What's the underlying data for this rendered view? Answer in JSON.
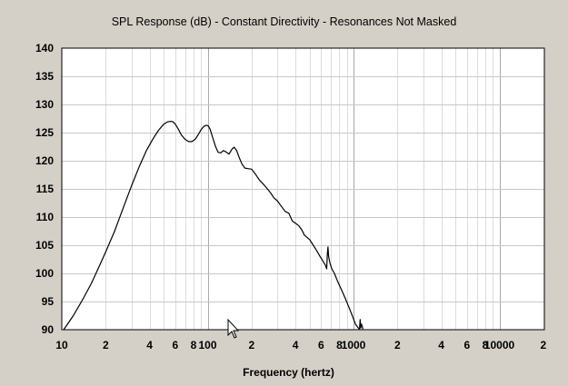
{
  "chart_data": {
    "type": "line",
    "title": "SPL Response (dB) - Constant Directivity - Resonances Not Masked",
    "xlabel": "Frequency (hertz)",
    "ylabel": "",
    "x_scale": "log",
    "xlim": [
      10,
      20000
    ],
    "ylim": [
      90,
      140
    ],
    "yticks": [
      90,
      95,
      100,
      105,
      110,
      115,
      120,
      125,
      130,
      135,
      140
    ],
    "xtick_labels": [
      {
        "value": 10,
        "label": "10"
      },
      {
        "value": 20,
        "label": "2"
      },
      {
        "value": 40,
        "label": "4"
      },
      {
        "value": 60,
        "label": "6"
      },
      {
        "value": 80,
        "label": "8"
      },
      {
        "value": 100,
        "label": "100"
      },
      {
        "value": 200,
        "label": "2"
      },
      {
        "value": 400,
        "label": "4"
      },
      {
        "value": 600,
        "label": "6"
      },
      {
        "value": 800,
        "label": "8"
      },
      {
        "value": 1000,
        "label": "1000"
      },
      {
        "value": 2000,
        "label": "2"
      },
      {
        "value": 4000,
        "label": "4"
      },
      {
        "value": 6000,
        "label": "6"
      },
      {
        "value": 8000,
        "label": "8"
      },
      {
        "value": 10000,
        "label": "10000"
      },
      {
        "value": 20000,
        "label": "2"
      }
    ],
    "grid": true,
    "line_color": "#000000",
    "series": [
      {
        "x": [
          10.3,
          12,
          14,
          16,
          18,
          20,
          23,
          26,
          30,
          34,
          38,
          42,
          46,
          50,
          53,
          56,
          58,
          60,
          63,
          66,
          70,
          74,
          78,
          82,
          86,
          90,
          94,
          98,
          101,
          104,
          108,
          113,
          118,
          123,
          128,
          133,
          140,
          147,
          152,
          158,
          165,
          172,
          180,
          190,
          200,
          213,
          226,
          240,
          255,
          270,
          285,
          300,
          320,
          340,
          360,
          380,
          400,
          420,
          440,
          460,
          480,
          500,
          530,
          560,
          590,
          610,
          640,
          655,
          662,
          668,
          675,
          690,
          710,
          740,
          780,
          830,
          880,
          930,
          980,
          1030,
          1070,
          1100,
          1110,
          1120,
          1135,
          1150,
          1160
        ],
        "y": [
          90,
          92.5,
          95.5,
          98.3,
          101.2,
          103.8,
          107.5,
          111.2,
          115.5,
          119,
          121.8,
          123.8,
          125.4,
          126.5,
          126.9,
          127,
          126.9,
          126.5,
          125.6,
          124.6,
          123.8,
          123.4,
          123.4,
          123.8,
          124.6,
          125.5,
          126.1,
          126.3,
          126.2,
          125.6,
          124.2,
          122.6,
          121.5,
          121.4,
          121.8,
          121.6,
          121.2,
          122.1,
          122.4,
          121.8,
          120.5,
          119.4,
          118.7,
          118.6,
          118.5,
          117.6,
          116.6,
          115.9,
          115.1,
          114.3,
          113.4,
          112.9,
          111.9,
          111,
          110.7,
          109.3,
          108.9,
          108.5,
          107.8,
          106.8,
          106.4,
          106,
          105,
          104,
          103,
          102.4,
          101.5,
          100.8,
          103.5,
          104.7,
          103,
          101.8,
          100.8,
          100,
          98.5,
          97,
          95.5,
          94,
          92.5,
          91,
          90.4,
          90.1,
          91.8,
          90.3,
          91,
          90.5,
          90.1
        ]
      }
    ]
  }
}
